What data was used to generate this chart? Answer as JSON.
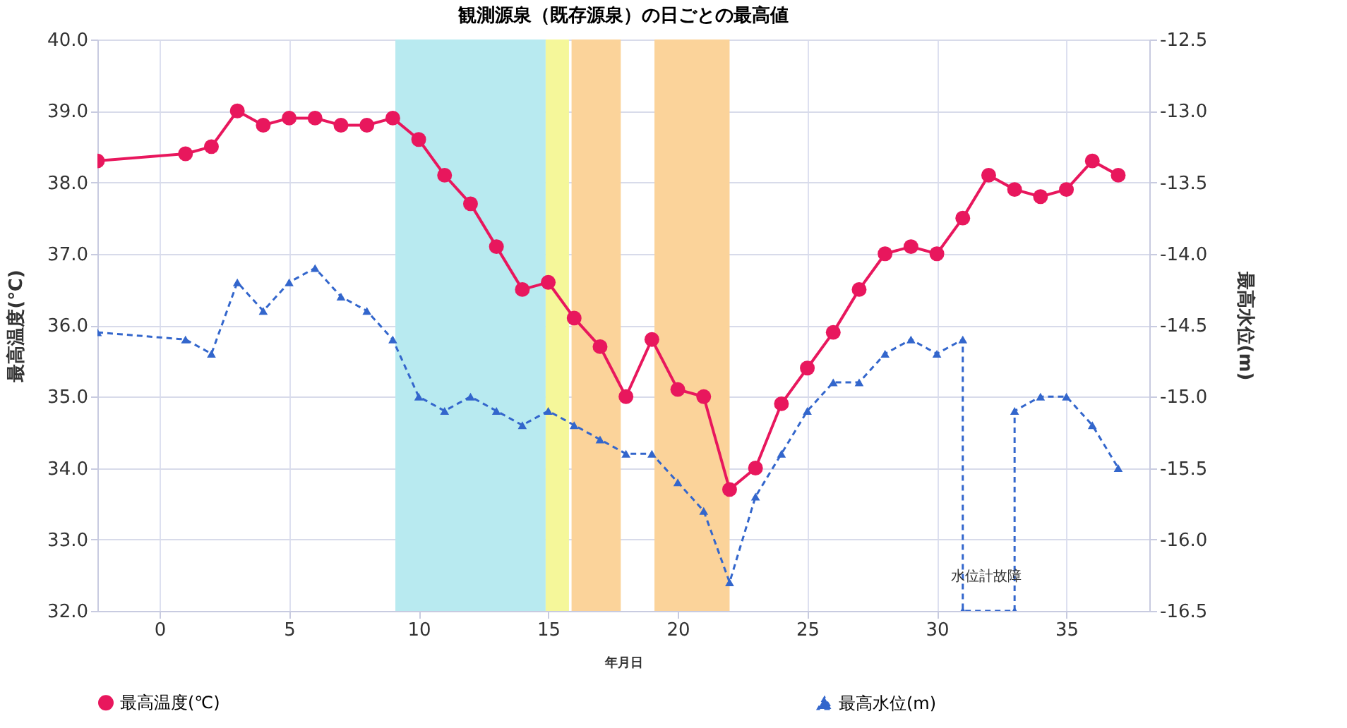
{
  "chart_data": {
    "type": "line",
    "title": "観測源泉（既存源泉）の日ごとの最高値",
    "xlabel": "年月日",
    "ylabel": "最高温度(℃)",
    "y2label": "最高水位(m)",
    "x": [
      -2.4,
      1,
      2,
      3,
      4,
      5,
      6,
      7,
      8,
      9,
      10,
      11,
      12,
      13,
      14,
      15,
      16,
      17,
      18,
      19,
      20,
      21,
      22,
      23,
      24,
      25,
      26,
      27,
      28,
      29,
      30,
      31,
      32,
      33,
      34,
      35,
      36,
      37
    ],
    "series": [
      {
        "name": "最高温度(℃)",
        "color": "#e8175d",
        "marker": "circle",
        "line_style": "solid",
        "values": [
          38.3,
          38.4,
          38.5,
          39.0,
          38.8,
          38.9,
          38.9,
          38.8,
          38.8,
          38.9,
          38.6,
          38.1,
          37.7,
          37.1,
          36.5,
          36.6,
          36.1,
          35.7,
          35.0,
          35.8,
          35.1,
          35.0,
          33.7,
          34.0,
          34.9,
          35.4,
          35.9,
          36.5,
          37.0,
          37.1,
          37.0,
          37.5,
          38.1,
          37.9,
          37.8,
          37.9,
          38.3,
          38.1
        ]
      },
      {
        "name": "最高水位(m)",
        "color": "#3366cc",
        "marker": "triangle",
        "line_style": "dashed",
        "axis": "y2",
        "x": [
          -2.4,
          1,
          2,
          3,
          4,
          5,
          6,
          7,
          8,
          9,
          10,
          11,
          12,
          13,
          14,
          15,
          16,
          17,
          18,
          19,
          20,
          21,
          22,
          23,
          24,
          25,
          26,
          27,
          28,
          29,
          30,
          31,
          31,
          33,
          33,
          34,
          35,
          36,
          37
        ],
        "values": [
          -14.55,
          -14.6,
          -14.7,
          -14.2,
          -14.4,
          -14.2,
          -14.1,
          -14.3,
          -14.4,
          -14.6,
          -15.0,
          -15.1,
          -15.0,
          -15.1,
          -15.2,
          -15.1,
          -15.2,
          -15.3,
          -15.4,
          -15.4,
          -15.6,
          -15.8,
          -16.3,
          -15.7,
          -15.4,
          -15.1,
          -14.9,
          -14.9,
          -14.7,
          -14.6,
          -14.7,
          -14.6,
          -16.5,
          -16.5,
          -15.1,
          -15.0,
          -15.0,
          -15.2,
          -15.5
        ]
      }
    ],
    "xlim": [
      -2.4,
      38.2
    ],
    "xticks": [
      0,
      5,
      10,
      15,
      20,
      25,
      30,
      35
    ],
    "ylim": [
      32,
      40
    ],
    "yticks": [
      {
        "value": 32,
        "label": "32.0"
      },
      {
        "value": 33,
        "label": "33.0"
      },
      {
        "value": 34,
        "label": "34.0"
      },
      {
        "value": 35,
        "label": "35.0"
      },
      {
        "value": 36,
        "label": "36.0"
      },
      {
        "value": 37,
        "label": "37.0"
      },
      {
        "value": 38,
        "label": "38.0"
      },
      {
        "value": 39,
        "label": "39.0"
      },
      {
        "value": 40,
        "label": "40.0"
      }
    ],
    "y2lim": [
      -16.5,
      -12.5
    ],
    "y2ticks": [
      -16.5,
      {
        "value": -16,
        "label": "-16.0"
      },
      -15.5,
      {
        "value": -15,
        "label": "-15.0"
      },
      -14.5,
      {
        "value": -14,
        "label": "-14.0"
      },
      -13.5,
      {
        "value": -13,
        "label": "-13.0"
      },
      -12.5
    ],
    "bands": [
      {
        "axis": "x",
        "from": 9.1,
        "to": 14.9,
        "color": "#b8eaf0"
      },
      {
        "axis": "x",
        "from": 14.9,
        "to": 15.8,
        "color": "#f5f79a"
      },
      {
        "axis": "x",
        "from": 15.9,
        "to": 17.8,
        "color": "#fbd39a"
      },
      {
        "axis": "x",
        "from": 19.1,
        "to": 22.0,
        "color": "#fbd39a"
      }
    ],
    "annotations": [
      "水位計故障"
    ],
    "grid": true,
    "legend": "bottom"
  }
}
